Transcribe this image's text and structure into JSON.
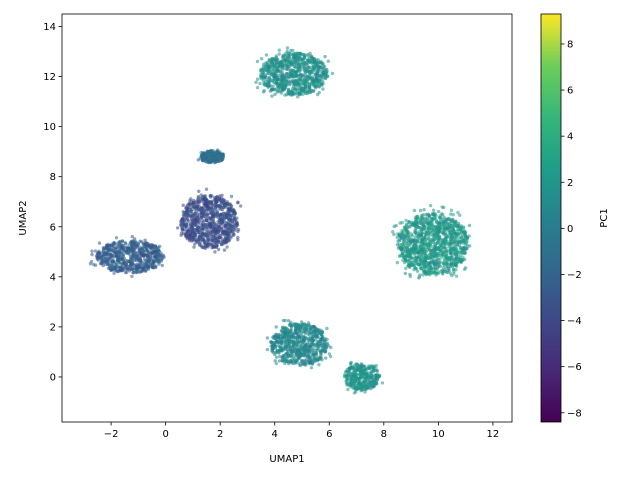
{
  "chart_data": {
    "type": "scatter",
    "title": "",
    "xlabel": "UMAP1",
    "ylabel": "UMAP2",
    "colorbar_label": "PC1",
    "colormap": "viridis",
    "xlim": [
      -3.8,
      12.7
    ],
    "ylim": [
      -1.8,
      14.5
    ],
    "xticks": [
      -2,
      0,
      2,
      4,
      6,
      8,
      10,
      12
    ],
    "yticks": [
      0,
      2,
      4,
      6,
      8,
      10,
      12,
      14
    ],
    "color_range": [
      -8.4,
      9.3
    ],
    "colorbar_ticks": [
      -8,
      -6,
      -4,
      -2,
      0,
      2,
      4,
      6,
      8
    ],
    "grid": false,
    "clusters": [
      {
        "center": [
          4.7,
          12.1
        ],
        "spread": [
          1.25,
          0.85
        ],
        "pc1_mean": 1.6,
        "pc1_sd": 0.7
      },
      {
        "center": [
          -1.3,
          4.8
        ],
        "spread": [
          1.25,
          0.65
        ],
        "pc1_mean": -2.4,
        "pc1_sd": 0.7
      },
      {
        "center": [
          1.6,
          6.2
        ],
        "spread": [
          1.05,
          1.05
        ],
        "pc1_mean": -3.6,
        "pc1_sd": 0.8
      },
      {
        "center": [
          1.7,
          8.8
        ],
        "spread": [
          0.45,
          0.25
        ],
        "pc1_mean": -1.2,
        "pc1_sd": 0.6
      },
      {
        "center": [
          9.8,
          5.3
        ],
        "spread": [
          1.3,
          1.25
        ],
        "pc1_mean": 2.3,
        "pc1_sd": 0.9
      },
      {
        "center": [
          4.9,
          1.3
        ],
        "spread": [
          1.05,
          0.85
        ],
        "pc1_mean": 0.9,
        "pc1_sd": 0.6
      },
      {
        "center": [
          7.2,
          0.0
        ],
        "spread": [
          0.65,
          0.55
        ],
        "pc1_mean": 1.9,
        "pc1_sd": 0.6
      }
    ]
  }
}
